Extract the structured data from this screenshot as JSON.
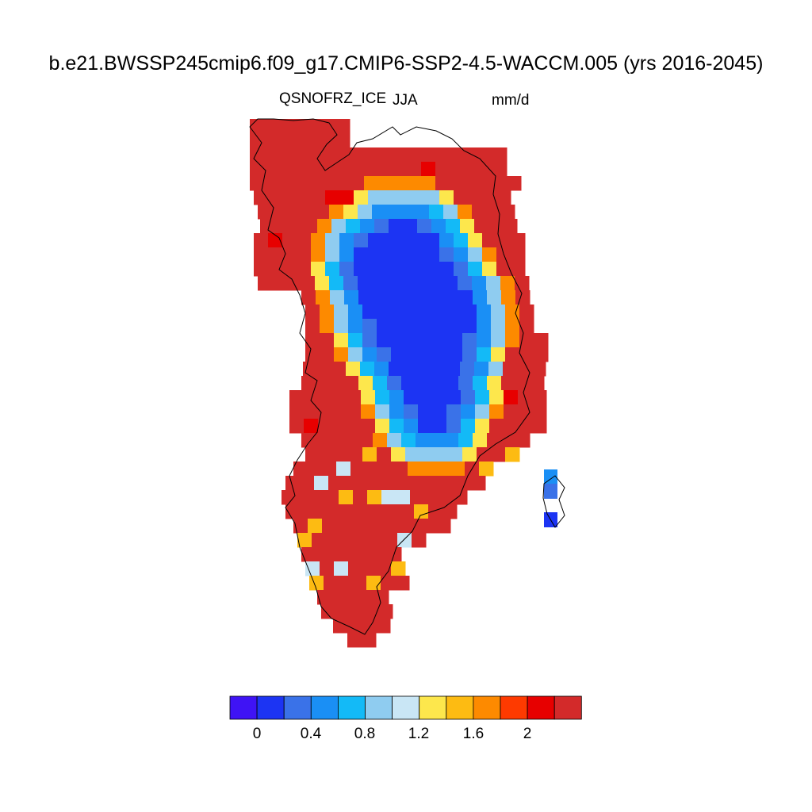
{
  "title": "b.e21.BWSSP245cmip6.f09_g17.CMIP6-SSP2-4.5-WACCM.005 (yrs 2016-2045)",
  "variable": "QSNOFRZ_ICE",
  "season": "JJA",
  "units": "mm/d",
  "colorbar": {
    "colors": [
      "#3f13f5",
      "#1c34f3",
      "#3a72e8",
      "#1a8ff5",
      "#13baf7",
      "#8fccf0",
      "#c9e6f5",
      "#fde74c",
      "#fdbb12",
      "#fd8a00",
      "#fe3a00",
      "#e70000",
      "#d32a2a"
    ],
    "tick_labels": [
      "0",
      "0.4",
      "0.8",
      "1.2",
      "1.6",
      "2"
    ]
  },
  "chart_data": {
    "type": "heatmap",
    "title": "b.e21.BWSSP245cmip6.f09_g17.CMIP6-SSP2-4.5-WACCM.005 (yrs 2016-2045)",
    "variable": "QSNOFRZ_ICE",
    "season": "JJA",
    "units": "mm/d",
    "region": "Greenland",
    "color_levels": [
      0,
      0.2,
      0.4,
      0.6,
      0.8,
      1.0,
      1.2,
      1.4,
      1.6,
      1.8,
      2.0,
      2.2
    ],
    "pattern": "interior ice sheet values 0.2-0.8 mm/d; margins above 2.2 mm/d"
  }
}
